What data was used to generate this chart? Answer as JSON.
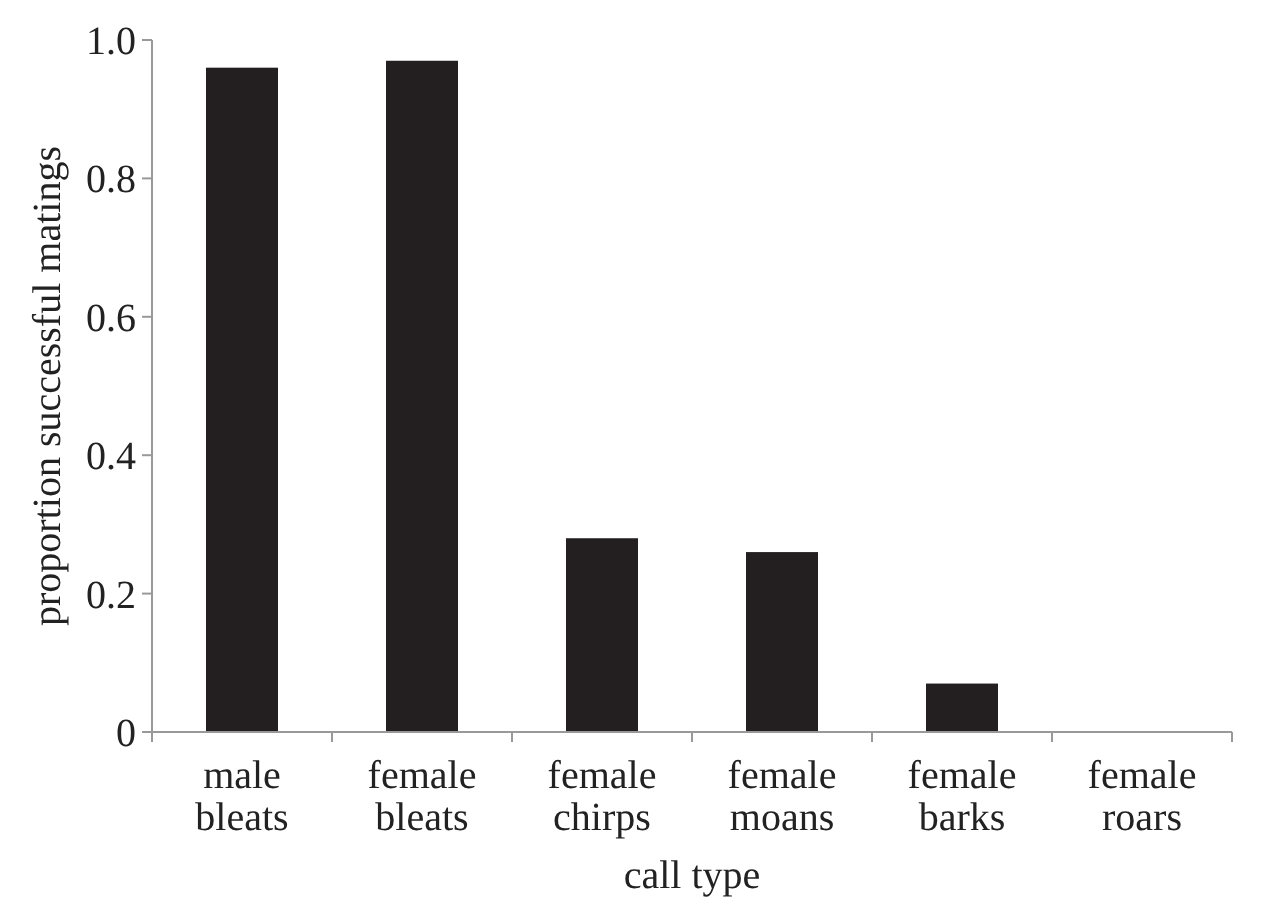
{
  "chart_data": {
    "type": "bar",
    "xlabel": "call type",
    "ylabel": "proportion successful matings",
    "categories": [
      "male bleats",
      "female bleats",
      "female chirps",
      "female moans",
      "female barks",
      "female roars"
    ],
    "values": [
      0.96,
      0.97,
      0.28,
      0.26,
      0.07,
      0
    ],
    "color": "#231f20",
    "ylim": [
      0,
      1
    ],
    "yticks": [
      0,
      {
        "value": 0.2,
        "label": "0.2"
      },
      {
        "value": 0.4,
        "label": "0.4"
      },
      {
        "value": 0.6,
        "label": "0.6"
      },
      {
        "value": 0.8,
        "label": "0.8"
      },
      {
        "value": 1,
        "label": "1.0"
      }
    ],
    "grid": false
  }
}
